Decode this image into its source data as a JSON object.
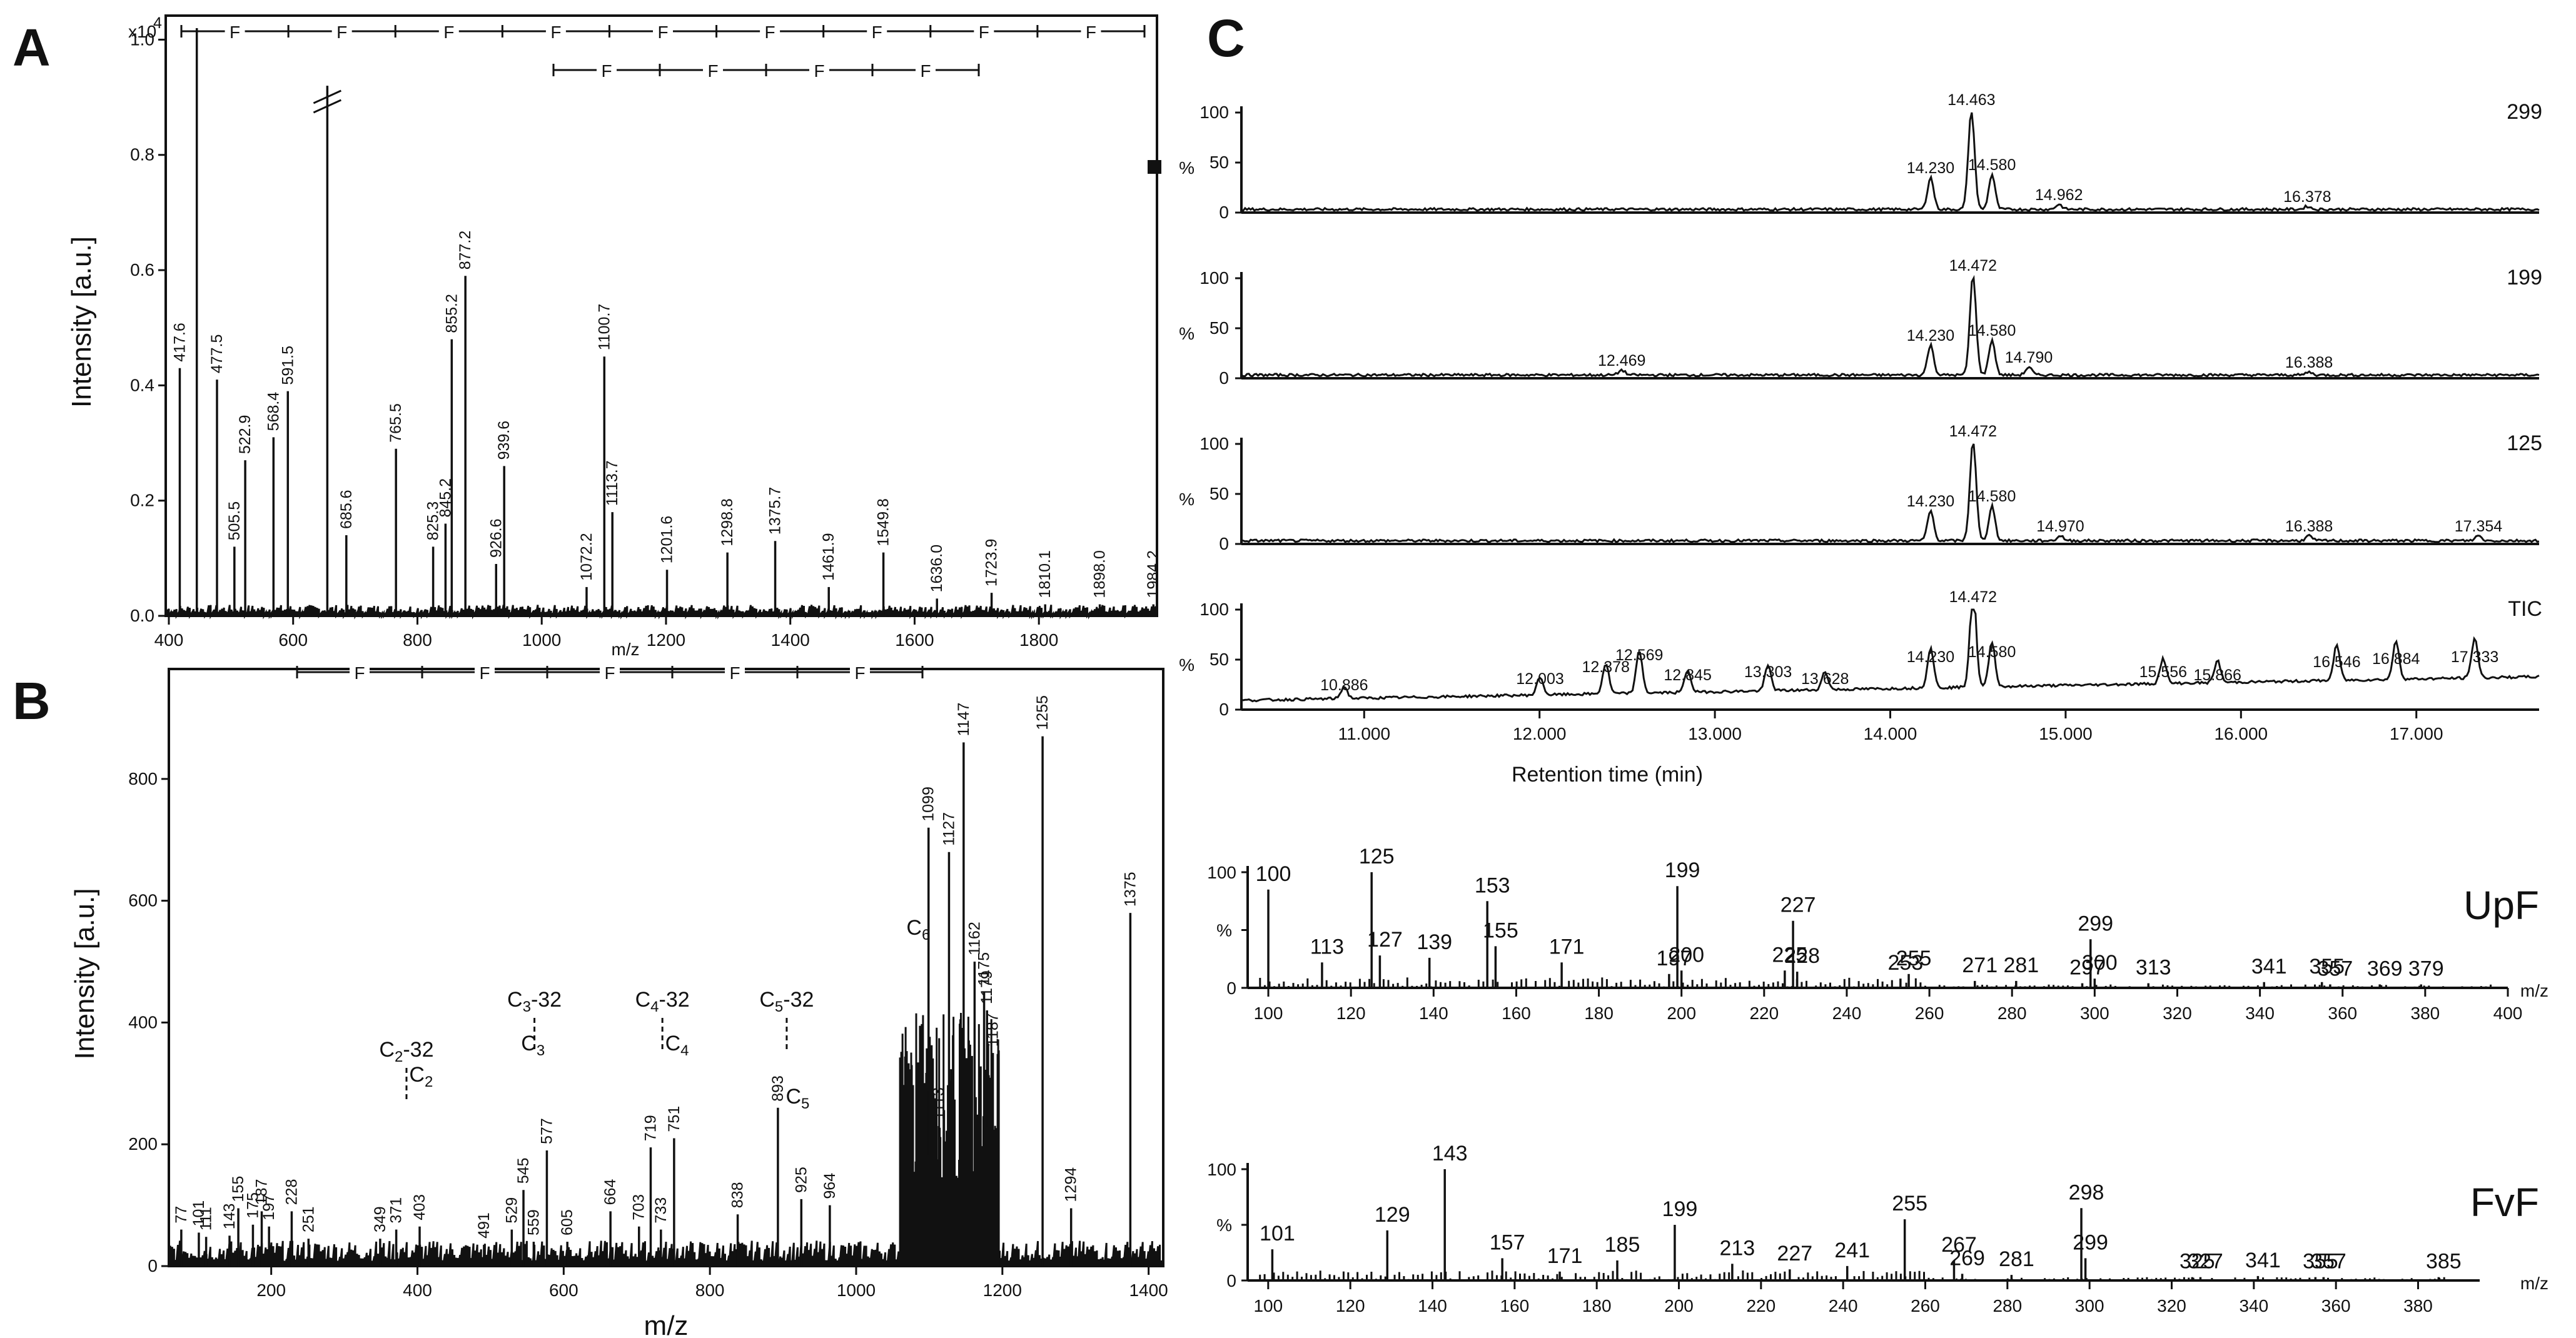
{
  "chart_data": [
    {
      "panel": "A",
      "type": "bar",
      "ylabel": "Intensity [a.u.]",
      "xlabel": "m/z",
      "y_multiplier": "x10^4",
      "y_multiplier_base": "x10",
      "y_multiplier_exp": "4",
      "xlim": [
        395,
        1990
      ],
      "ylim": [
        0,
        1.02
      ],
      "xticks": [
        400,
        600,
        800,
        1000,
        1200,
        1400,
        1600,
        1800
      ],
      "yticks": [
        0.0,
        0.2,
        0.4,
        0.6,
        0.8,
        1.0
      ],
      "ytick_labels": [
        "0.0",
        "0.2",
        "0.4",
        "0.6",
        "0.8",
        "1.0"
      ],
      "peaks": [
        {
          "x": 417.6,
          "y": 0.43,
          "label": "417.6"
        },
        {
          "x": 445.0,
          "y": 1.02,
          "label": ""
        },
        {
          "x": 477.5,
          "y": 0.41,
          "label": "477.5"
        },
        {
          "x": 505.5,
          "y": 0.12,
          "label": "505.5"
        },
        {
          "x": 522.9,
          "y": 0.27,
          "label": "522.9"
        },
        {
          "x": 568.4,
          "y": 0.31,
          "label": "568.4"
        },
        {
          "x": 591.5,
          "y": 0.39,
          "label": "591.5"
        },
        {
          "x": 655.0,
          "y": 0.92,
          "label": ""
        },
        {
          "x": 685.6,
          "y": 0.14,
          "label": "685.6"
        },
        {
          "x": 765.5,
          "y": 0.29,
          "label": "765.5"
        },
        {
          "x": 825.3,
          "y": 0.12,
          "label": "825.3"
        },
        {
          "x": 845.2,
          "y": 0.16,
          "label": "845.2"
        },
        {
          "x": 855.2,
          "y": 0.48,
          "label": "855.2"
        },
        {
          "x": 877.2,
          "y": 0.59,
          "label": "877.2"
        },
        {
          "x": 926.6,
          "y": 0.09,
          "label": "926.6"
        },
        {
          "x": 939.6,
          "y": 0.26,
          "label": "939.6"
        },
        {
          "x": 1072.2,
          "y": 0.05,
          "label": "1072.2"
        },
        {
          "x": 1100.7,
          "y": 0.45,
          "label": "1100.7"
        },
        {
          "x": 1113.7,
          "y": 0.18,
          "label": "1113.7"
        },
        {
          "x": 1201.6,
          "y": 0.08,
          "label": "1201.6"
        },
        {
          "x": 1298.8,
          "y": 0.11,
          "label": "1298.8"
        },
        {
          "x": 1375.7,
          "y": 0.13,
          "label": "1375.7"
        },
        {
          "x": 1461.9,
          "y": 0.05,
          "label": "1461.9"
        },
        {
          "x": 1549.8,
          "y": 0.11,
          "label": "1549.8"
        },
        {
          "x": 1636.0,
          "y": 0.03,
          "label": "1636.0"
        },
        {
          "x": 1723.9,
          "y": 0.04,
          "label": "1723.9"
        },
        {
          "x": 1810.1,
          "y": 0.02,
          "label": "1810.1"
        },
        {
          "x": 1898.0,
          "y": 0.02,
          "label": "1898.0"
        },
        {
          "x": 1984.2,
          "y": 0.02,
          "label": "1984.2"
        }
      ],
      "spacing_rows": [
        {
          "marks": [
            400,
            1990
          ],
          "labels": [
            "F",
            "F",
            "F",
            "F",
            "F",
            "F",
            "F",
            "F",
            "F"
          ]
        },
        {
          "marks": [
            1030,
            1555
          ],
          "labels": [
            "F",
            "F",
            "F",
            "F"
          ]
        }
      ]
    },
    {
      "panel": "B",
      "type": "bar",
      "ylabel": "Intensity [a.u.]",
      "xlabel": "m/z",
      "xlim": [
        60,
        1420
      ],
      "ylim": [
        0,
        960
      ],
      "xticks": [
        200,
        400,
        600,
        800,
        1000,
        1200,
        1400
      ],
      "yticks": [
        0,
        200,
        400,
        600,
        800
      ],
      "peaks": [
        {
          "x": 77,
          "y": 60,
          "label": "77"
        },
        {
          "x": 101,
          "y": 55,
          "label": "101"
        },
        {
          "x": 111,
          "y": 48,
          "label": "111"
        },
        {
          "x": 143,
          "y": 50,
          "label": "143"
        },
        {
          "x": 155,
          "y": 95,
          "label": "155"
        },
        {
          "x": 175,
          "y": 68,
          "label": "175"
        },
        {
          "x": 187,
          "y": 90,
          "label": "187"
        },
        {
          "x": 197,
          "y": 65,
          "label": "197"
        },
        {
          "x": 228,
          "y": 90,
          "label": "228"
        },
        {
          "x": 251,
          "y": 45,
          "label": "251"
        },
        {
          "x": 349,
          "y": 45,
          "label": "349"
        },
        {
          "x": 371,
          "y": 60,
          "label": "371"
        },
        {
          "x": 403,
          "y": 65,
          "label": "403"
        },
        {
          "x": 491,
          "y": 35,
          "label": "491"
        },
        {
          "x": 529,
          "y": 60,
          "label": "529"
        },
        {
          "x": 545,
          "y": 125,
          "label": "545"
        },
        {
          "x": 559,
          "y": 40,
          "label": "559"
        },
        {
          "x": 577,
          "y": 190,
          "label": "577"
        },
        {
          "x": 605,
          "y": 40,
          "label": "605"
        },
        {
          "x": 664,
          "y": 90,
          "label": "664"
        },
        {
          "x": 703,
          "y": 65,
          "label": "703"
        },
        {
          "x": 719,
          "y": 195,
          "label": "719"
        },
        {
          "x": 733,
          "y": 60,
          "label": "733"
        },
        {
          "x": 751,
          "y": 210,
          "label": "751"
        },
        {
          "x": 838,
          "y": 85,
          "label": "838"
        },
        {
          "x": 893,
          "y": 260,
          "label": "893"
        },
        {
          "x": 925,
          "y": 110,
          "label": "925"
        },
        {
          "x": 964,
          "y": 100,
          "label": "964"
        },
        {
          "x": 1099,
          "y": 720,
          "label": "1099"
        },
        {
          "x": 1113,
          "y": 230,
          "label": "1113"
        },
        {
          "x": 1127,
          "y": 680,
          "label": "1127"
        },
        {
          "x": 1147,
          "y": 860,
          "label": "1147"
        },
        {
          "x": 1162,
          "y": 500,
          "label": "1162"
        },
        {
          "x": 1175,
          "y": 450,
          "label": "1175"
        },
        {
          "x": 1179,
          "y": 420,
          "label": "1179"
        },
        {
          "x": 1187,
          "y": 350,
          "label": "1187"
        },
        {
          "x": 1255,
          "y": 870,
          "label": "1255"
        },
        {
          "x": 1294,
          "y": 95,
          "label": "1294"
        },
        {
          "x": 1375,
          "y": 580,
          "label": "1375"
        }
      ],
      "fragment_labels": [
        {
          "base": "C",
          "sub": "2",
          "suffix": "-32",
          "x": 385
        },
        {
          "base": "C",
          "sub": "3",
          "suffix": "-32",
          "x": 560
        },
        {
          "base": "C",
          "sub": "4",
          "suffix": "-32",
          "x": 735
        },
        {
          "base": "C",
          "sub": "5",
          "suffix": "-32",
          "x": 905
        }
      ],
      "fragment_plain": [
        {
          "base": "C",
          "sub": "2",
          "x": 405
        },
        {
          "base": "C",
          "sub": "3",
          "x": 558
        },
        {
          "base": "C",
          "sub": "4",
          "x": 755
        },
        {
          "base": "C",
          "sub": "5",
          "x": 920
        },
        {
          "base": "C",
          "sub": "6",
          "x": 1085
        }
      ],
      "spacing_labels": [
        "F",
        "F",
        "F",
        "F",
        "F"
      ]
    },
    {
      "panel": "C",
      "type": "line",
      "xlabel": "Retention time (min)",
      "ylabel": "%",
      "xlim": [
        10.3,
        17.7
      ],
      "xticks": [
        "11.000",
        "12.000",
        "13.000",
        "14.000",
        "15.000",
        "16.000",
        "17.000"
      ],
      "yticks": [
        "0",
        "50",
        "100"
      ],
      "series": [
        {
          "name": "299",
          "peaks": [
            {
              "x": 14.23,
              "y": 32,
              "label": "14.230"
            },
            {
              "x": 14.463,
              "y": 100,
              "label": "14.463"
            },
            {
              "x": 14.58,
              "y": 35,
              "label": "14.580"
            },
            {
              "x": 14.962,
              "y": 5,
              "label": "14.962"
            },
            {
              "x": 16.378,
              "y": 3,
              "label": "16.378"
            }
          ]
        },
        {
          "name": "199",
          "peaks": [
            {
              "x": 12.469,
              "y": 5,
              "label": "12.469"
            },
            {
              "x": 14.23,
              "y": 30,
              "label": "14.230"
            },
            {
              "x": 14.472,
              "y": 100,
              "label": "14.472"
            },
            {
              "x": 14.58,
              "y": 35,
              "label": "14.580"
            },
            {
              "x": 14.79,
              "y": 8,
              "label": "14.790"
            },
            {
              "x": 16.388,
              "y": 3,
              "label": "16.388"
            }
          ]
        },
        {
          "name": "125",
          "peaks": [
            {
              "x": 14.23,
              "y": 30,
              "label": "14.230"
            },
            {
              "x": 14.472,
              "y": 100,
              "label": "14.472"
            },
            {
              "x": 14.58,
              "y": 35,
              "label": "14.580"
            },
            {
              "x": 14.97,
              "y": 5,
              "label": "14.970"
            },
            {
              "x": 16.388,
              "y": 5,
              "label": "16.388"
            },
            {
              "x": 17.354,
              "y": 5,
              "label": "17.354"
            }
          ]
        },
        {
          "name": "TIC",
          "peaks": [
            {
              "x": 10.886,
              "y": 12,
              "label": "10.886"
            },
            {
              "x": 12.003,
              "y": 18,
              "label": "12.003"
            },
            {
              "x": 12.378,
              "y": 30,
              "label": "12.378"
            },
            {
              "x": 12.569,
              "y": 42,
              "label": "12.569"
            },
            {
              "x": 12.845,
              "y": 22,
              "label": "12.845"
            },
            {
              "x": 13.303,
              "y": 25,
              "label": "13.303"
            },
            {
              "x": 13.628,
              "y": 18,
              "label": "13.628"
            },
            {
              "x": 14.23,
              "y": 40,
              "label": "14.230"
            },
            {
              "x": 14.472,
              "y": 100,
              "label": "14.472"
            },
            {
              "x": 14.58,
              "y": 45,
              "label": "14.580"
            },
            {
              "x": 15.556,
              "y": 25,
              "label": "15.556"
            },
            {
              "x": 15.866,
              "y": 22,
              "label": "15.866"
            },
            {
              "x": 16.546,
              "y": 35,
              "label": "16.546"
            },
            {
              "x": 16.884,
              "y": 38,
              "label": "16.884"
            },
            {
              "x": 17.333,
              "y": 40,
              "label": "17.333"
            }
          ]
        }
      ]
    },
    {
      "panel": "C-UpF",
      "type": "bar",
      "name": "UpF",
      "xlabel": "m/z",
      "ylabel": "%",
      "xlim": [
        95,
        400
      ],
      "xticks": [
        100,
        120,
        140,
        160,
        180,
        200,
        220,
        240,
        260,
        280,
        300,
        320,
        340,
        360,
        380,
        400
      ],
      "yticks": [
        "0",
        "50",
        "100"
      ],
      "peaks": [
        {
          "x": 100,
          "y": 85,
          "label": "100"
        },
        {
          "x": 113,
          "y": 22,
          "label": "113"
        },
        {
          "x": 125,
          "y": 100,
          "label": "125"
        },
        {
          "x": 127,
          "y": 28,
          "label": "127"
        },
        {
          "x": 139,
          "y": 26,
          "label": "139"
        },
        {
          "x": 153,
          "y": 75,
          "label": "153"
        },
        {
          "x": 155,
          "y": 36,
          "label": "155"
        },
        {
          "x": 171,
          "y": 22,
          "label": "171"
        },
        {
          "x": 197,
          "y": 12,
          "label": "197"
        },
        {
          "x": 199,
          "y": 88,
          "label": "199"
        },
        {
          "x": 200,
          "y": 15,
          "label": "200"
        },
        {
          "x": 225,
          "y": 15,
          "label": "225"
        },
        {
          "x": 227,
          "y": 58,
          "label": "227"
        },
        {
          "x": 228,
          "y": 14,
          "label": "228"
        },
        {
          "x": 253,
          "y": 8,
          "label": "253"
        },
        {
          "x": 255,
          "y": 12,
          "label": "255"
        },
        {
          "x": 271,
          "y": 6,
          "label": "271"
        },
        {
          "x": 281,
          "y": 6,
          "label": "281"
        },
        {
          "x": 297,
          "y": 4,
          "label": "297"
        },
        {
          "x": 299,
          "y": 42,
          "label": "299"
        },
        {
          "x": 300,
          "y": 8,
          "label": "300"
        },
        {
          "x": 313,
          "y": 4,
          "label": "313"
        },
        {
          "x": 341,
          "y": 5,
          "label": "341"
        },
        {
          "x": 355,
          "y": 5,
          "label": "355"
        },
        {
          "x": 357,
          "y": 3,
          "label": "357"
        },
        {
          "x": 369,
          "y": 3,
          "label": "369"
        },
        {
          "x": 379,
          "y": 3,
          "label": "379"
        }
      ]
    },
    {
      "panel": "C-FvF",
      "type": "bar",
      "name": "FvF",
      "xlabel": "m/z",
      "ylabel": "%",
      "xlim": [
        95,
        395
      ],
      "xticks": [
        100,
        120,
        140,
        160,
        180,
        200,
        220,
        240,
        260,
        280,
        300,
        320,
        340,
        360,
        380
      ],
      "yticks": [
        "0",
        "50",
        "100"
      ],
      "peaks": [
        {
          "x": 101,
          "y": 28,
          "label": "101"
        },
        {
          "x": 129,
          "y": 45,
          "label": "129"
        },
        {
          "x": 143,
          "y": 100,
          "label": "143"
        },
        {
          "x": 157,
          "y": 20,
          "label": "157"
        },
        {
          "x": 171,
          "y": 8,
          "label": "171"
        },
        {
          "x": 185,
          "y": 18,
          "label": "185"
        },
        {
          "x": 199,
          "y": 50,
          "label": "199"
        },
        {
          "x": 213,
          "y": 15,
          "label": "213"
        },
        {
          "x": 227,
          "y": 10,
          "label": "227"
        },
        {
          "x": 241,
          "y": 13,
          "label": "241"
        },
        {
          "x": 255,
          "y": 55,
          "label": "255"
        },
        {
          "x": 267,
          "y": 18,
          "label": "267"
        },
        {
          "x": 269,
          "y": 6,
          "label": "269"
        },
        {
          "x": 281,
          "y": 5,
          "label": "281"
        },
        {
          "x": 298,
          "y": 65,
          "label": "298"
        },
        {
          "x": 299,
          "y": 20,
          "label": "299"
        },
        {
          "x": 325,
          "y": 3,
          "label": "325"
        },
        {
          "x": 327,
          "y": 3,
          "label": "327"
        },
        {
          "x": 341,
          "y": 4,
          "label": "341"
        },
        {
          "x": 355,
          "y": 3,
          "label": "355"
        },
        {
          "x": 357,
          "y": 3,
          "label": "357"
        },
        {
          "x": 385,
          "y": 3,
          "label": "385"
        }
      ]
    }
  ],
  "panel_letters": {
    "a": "A",
    "b": "B",
    "c": "C"
  }
}
